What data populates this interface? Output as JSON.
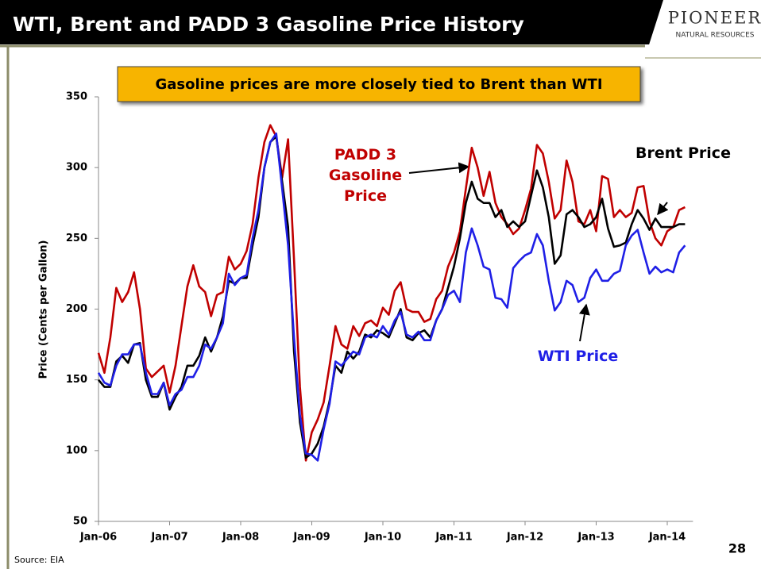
{
  "header": {
    "title": "WTI, Brent and PADD 3 Gasoline Price History",
    "logo": "PIONEER",
    "logo_sub": "NATURAL RESOURCES"
  },
  "callout": "Gasoline prices are more closely tied to Brent than WTI",
  "footer": {
    "source": "Source: EIA",
    "page": "28"
  },
  "chart_data": {
    "type": "line",
    "y_label": "Price (Cents per Gallon)",
    "categories": [
      "Jan-06",
      null,
      null,
      null,
      null,
      null,
      null,
      null,
      null,
      null,
      null,
      null,
      "Jan-07",
      null,
      null,
      null,
      null,
      null,
      null,
      null,
      null,
      null,
      null,
      null,
      "Jan-08",
      null,
      null,
      null,
      null,
      null,
      null,
      null,
      null,
      null,
      null,
      null,
      "Jan-09",
      null,
      null,
      null,
      null,
      null,
      null,
      null,
      null,
      null,
      null,
      null,
      "Jan-10",
      null,
      null,
      null,
      null,
      null,
      null,
      null,
      null,
      null,
      null,
      null,
      "Jan-11",
      null,
      null,
      null,
      null,
      null,
      null,
      null,
      null,
      null,
      null,
      null,
      "Jan-12",
      null,
      null,
      null,
      null,
      null,
      null,
      null,
      null,
      null,
      null,
      null,
      "Jan-13",
      null,
      null,
      null,
      null,
      null,
      null,
      null,
      null,
      null,
      null,
      null,
      "Jan-14",
      null,
      null,
      null
    ],
    "series": [
      {
        "name": "PADD 3 Gasoline Price",
        "color": "#c00000",
        "values": [
          169,
          155,
          180,
          215,
          205,
          212,
          226,
          200,
          158,
          152,
          156,
          160,
          141,
          160,
          188,
          216,
          231,
          216,
          212,
          195,
          210,
          212,
          237,
          228,
          232,
          241,
          260,
          293,
          318,
          330,
          322,
          293,
          320,
          235,
          145,
          93,
          113,
          122,
          134,
          160,
          188,
          175,
          172,
          188,
          181,
          190,
          192,
          188,
          201,
          196,
          213,
          219,
          200,
          198,
          198,
          191,
          193,
          207,
          213,
          230,
          240,
          255,
          285,
          314,
          300,
          280,
          297,
          275,
          265,
          260,
          253,
          257,
          270,
          285,
          316,
          310,
          290,
          264,
          270,
          305,
          290,
          262,
          260,
          270,
          255,
          294,
          292,
          265,
          270,
          265,
          268,
          286,
          287,
          262,
          250,
          245,
          255,
          258,
          270,
          272
        ]
      },
      {
        "name": "Brent Price",
        "color": "#000000",
        "values": [
          150,
          145,
          145,
          163,
          167,
          162,
          175,
          176,
          150,
          138,
          138,
          148,
          129,
          138,
          145,
          160,
          160,
          167,
          180,
          170,
          180,
          195,
          220,
          218,
          222,
          222,
          245,
          265,
          300,
          318,
          322,
          290,
          258,
          170,
          120,
          95,
          98,
          105,
          117,
          135,
          160,
          155,
          170,
          165,
          170,
          182,
          180,
          185,
          183,
          180,
          190,
          200,
          180,
          178,
          183,
          185,
          180,
          192,
          200,
          215,
          230,
          250,
          275,
          290,
          278,
          275,
          275,
          265,
          270,
          258,
          262,
          258,
          262,
          280,
          298,
          286,
          265,
          232,
          238,
          267,
          270,
          265,
          258,
          260,
          265,
          278,
          257,
          244,
          245,
          247,
          260,
          270,
          264,
          256,
          264,
          258,
          258,
          258,
          260,
          260
        ]
      },
      {
        "name": "WTI Price",
        "color": "#1f1fe6",
        "values": [
          155,
          148,
          146,
          160,
          168,
          168,
          175,
          175,
          155,
          140,
          140,
          148,
          132,
          140,
          143,
          152,
          152,
          160,
          175,
          172,
          180,
          190,
          225,
          217,
          222,
          224,
          250,
          270,
          300,
          318,
          324,
          285,
          245,
          180,
          125,
          98,
          97,
          93,
          115,
          133,
          163,
          160,
          165,
          170,
          168,
          180,
          182,
          180,
          188,
          182,
          192,
          198,
          182,
          180,
          184,
          178,
          178,
          192,
          200,
          210,
          213,
          205,
          240,
          257,
          245,
          230,
          228,
          208,
          207,
          201,
          229,
          234,
          238,
          240,
          253,
          245,
          220,
          199,
          205,
          220,
          217,
          205,
          208,
          222,
          228,
          220,
          220,
          225,
          227,
          245,
          252,
          256,
          240,
          225,
          230,
          226,
          228,
          226,
          240,
          245
        ]
      }
    ],
    "ylim": [
      50,
      350
    ],
    "yticks": [
      50,
      100,
      150,
      200,
      250,
      300,
      350
    ],
    "grid": false
  }
}
